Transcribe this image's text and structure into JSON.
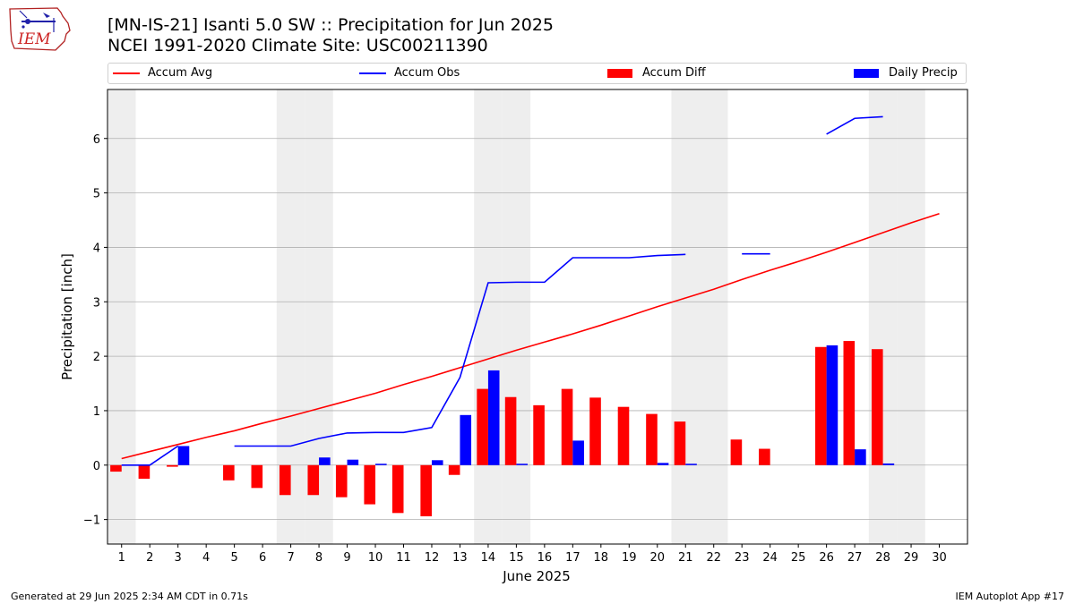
{
  "logo": {
    "text": "IEM"
  },
  "title_line1": "[MN-IS-21] Isanti 5.0 SW :: Precipitation for Jun 2025",
  "title_line2": "NCEI 1991-2020 Climate Site: USC00211390",
  "footer_left": "Generated at 29 Jun 2025 2:34 AM CDT in 0.71s",
  "footer_right": "IEM Autoplot App #17",
  "legend": {
    "accum_avg": "Accum Avg",
    "accum_obs": "Accum Obs",
    "accum_diff": "Accum Diff",
    "daily_precip": "Daily Precip"
  },
  "colors": {
    "avg": "#ff0000",
    "obs": "#0000ff",
    "diff": "#ff0000",
    "daily": "#0000ff",
    "weekend": "#eeeeee",
    "grid": "#b0b0b0"
  },
  "chart_data": {
    "type": "bar",
    "xlabel": "June 2025",
    "ylabel": "Precipitation [inch]",
    "xlim": [
      0.5,
      31
    ],
    "ylim": [
      -1.45,
      6.9
    ],
    "yticks": [
      -1,
      0,
      1,
      2,
      3,
      4,
      5,
      6
    ],
    "x": [
      1,
      2,
      3,
      4,
      5,
      6,
      7,
      8,
      9,
      10,
      11,
      12,
      13,
      14,
      15,
      16,
      17,
      18,
      19,
      20,
      21,
      22,
      23,
      24,
      25,
      26,
      27,
      28,
      29,
      30
    ],
    "weekend_days": [
      1,
      7,
      8,
      14,
      15,
      21,
      22,
      28,
      29
    ],
    "series": [
      {
        "name": "Accum Avg",
        "type": "line",
        "values": [
          0.12,
          0.25,
          0.38,
          0.51,
          0.63,
          0.77,
          0.9,
          1.04,
          1.18,
          1.32,
          1.48,
          1.63,
          1.79,
          1.95,
          2.11,
          2.26,
          2.41,
          2.57,
          2.74,
          2.91,
          3.07,
          3.23,
          3.41,
          3.58,
          3.74,
          3.91,
          4.09,
          4.27,
          4.45,
          4.62
        ]
      },
      {
        "name": "Accum Obs",
        "type": "line",
        "values": [
          0.0,
          0.0,
          0.35,
          null,
          0.35,
          0.35,
          0.35,
          0.49,
          0.59,
          0.6,
          0.6,
          0.69,
          1.61,
          3.35,
          3.36,
          3.36,
          3.81,
          3.81,
          3.81,
          3.85,
          3.87,
          null,
          3.88,
          3.88,
          null,
          6.08,
          6.37,
          6.4,
          null,
          null
        ]
      },
      {
        "name": "Accum Diff",
        "type": "bar",
        "values": [
          -0.12,
          -0.25,
          -0.03,
          null,
          -0.28,
          -0.42,
          -0.55,
          -0.55,
          -0.59,
          -0.72,
          -0.88,
          -0.94,
          -0.18,
          1.4,
          1.25,
          1.1,
          1.4,
          1.24,
          1.07,
          0.94,
          0.8,
          null,
          0.47,
          0.3,
          null,
          2.17,
          2.28,
          2.13,
          null,
          null
        ]
      },
      {
        "name": "Daily Precip",
        "type": "bar",
        "values": [
          0.0,
          0.0,
          0.35,
          null,
          0.0,
          0.0,
          0.0,
          0.14,
          0.1,
          0.01,
          0.0,
          0.09,
          0.92,
          1.74,
          0.01,
          0.0,
          0.45,
          0.0,
          0.0,
          0.04,
          0.02,
          null,
          0.0,
          0.0,
          null,
          2.2,
          0.29,
          0.03,
          null,
          null
        ]
      }
    ]
  }
}
